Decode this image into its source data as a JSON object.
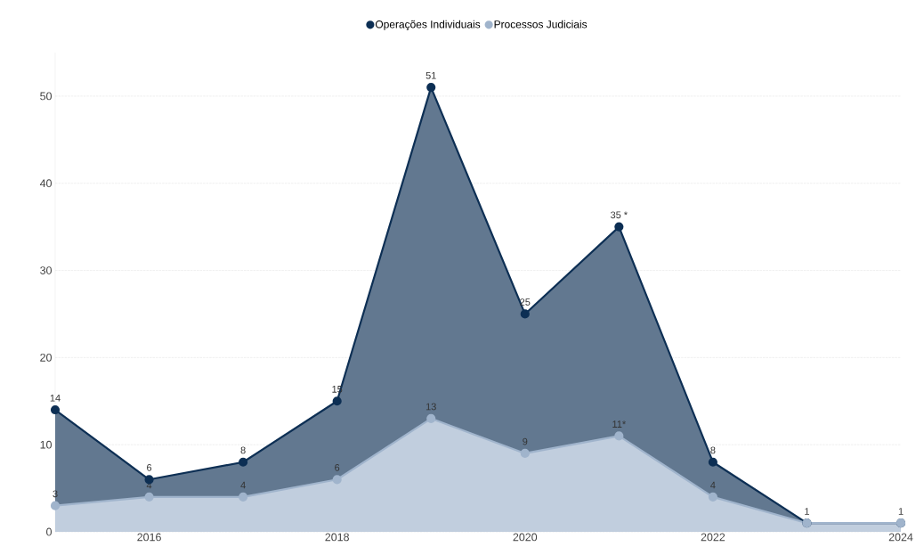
{
  "chart_data": {
    "type": "area",
    "x": [
      2015,
      2016,
      2017,
      2018,
      2019,
      2020,
      2021,
      2022,
      2023,
      2024
    ],
    "series": [
      {
        "name": "Operações Individuais",
        "color": "#0d2f54",
        "values": [
          14,
          6,
          8,
          15,
          51,
          25,
          35,
          8,
          1,
          1
        ],
        "value_labels": [
          "14",
          "6",
          "8",
          "15",
          "51",
          "25",
          "35 *",
          "8",
          "1",
          "1"
        ]
      },
      {
        "name": "Processos Judiciais",
        "color": "#a0b4cc",
        "values": [
          3,
          4,
          4,
          6,
          13,
          9,
          11,
          4,
          1,
          1
        ],
        "value_labels": [
          "3",
          "4",
          "4",
          "6",
          "13",
          "9",
          "11*",
          "4",
          null,
          null
        ]
      }
    ],
    "xlim": [
      2015,
      2024
    ],
    "xticks": [
      2016,
      2018,
      2020,
      2022,
      2024
    ],
    "ylim": [
      0,
      55
    ],
    "yticks": [
      0,
      10,
      20,
      30,
      40,
      50
    ],
    "grid": "y",
    "legend": "top",
    "marker": "circle",
    "line_style": "solid"
  }
}
